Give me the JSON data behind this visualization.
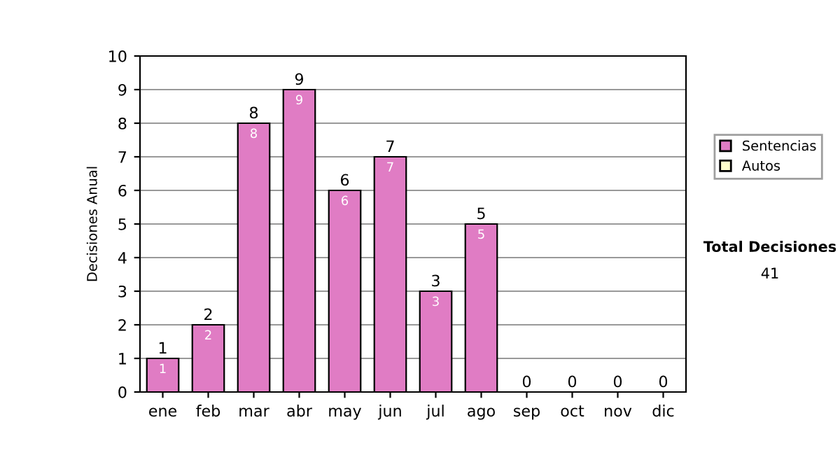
{
  "chart_data": {
    "type": "bar",
    "ylabel": "Decisiones Anual",
    "categories": [
      "ene",
      "feb",
      "mar",
      "abr",
      "may",
      "jun",
      "jul",
      "ago",
      "sep",
      "oct",
      "nov",
      "dic"
    ],
    "series": [
      {
        "name": "Sentencias",
        "color": "#e07cc4",
        "values": [
          1,
          2,
          8,
          9,
          6,
          7,
          3,
          5,
          0,
          0,
          0,
          0
        ],
        "value_labels": [
          "1",
          "2",
          "8",
          "9",
          "6",
          "7",
          "3",
          "5",
          null,
          null,
          null,
          null
        ]
      },
      {
        "name": "Autos",
        "color": "#ffffcc",
        "values": [
          0,
          0,
          0,
          0,
          0,
          0,
          0,
          0,
          0,
          0,
          0,
          0
        ]
      }
    ],
    "stacked": true,
    "totals": [
      "1",
      "2",
      "8",
      "9",
      "6",
      "7",
      "3",
      "5",
      "0",
      "0",
      "0",
      "0"
    ],
    "ylim": [
      0,
      10
    ],
    "yticks": [
      0,
      1,
      2,
      3,
      4,
      5,
      6,
      7,
      8,
      9,
      10
    ],
    "grid": "y",
    "legend": "right",
    "annotations": [
      "Total Decisiones",
      "41"
    ]
  }
}
